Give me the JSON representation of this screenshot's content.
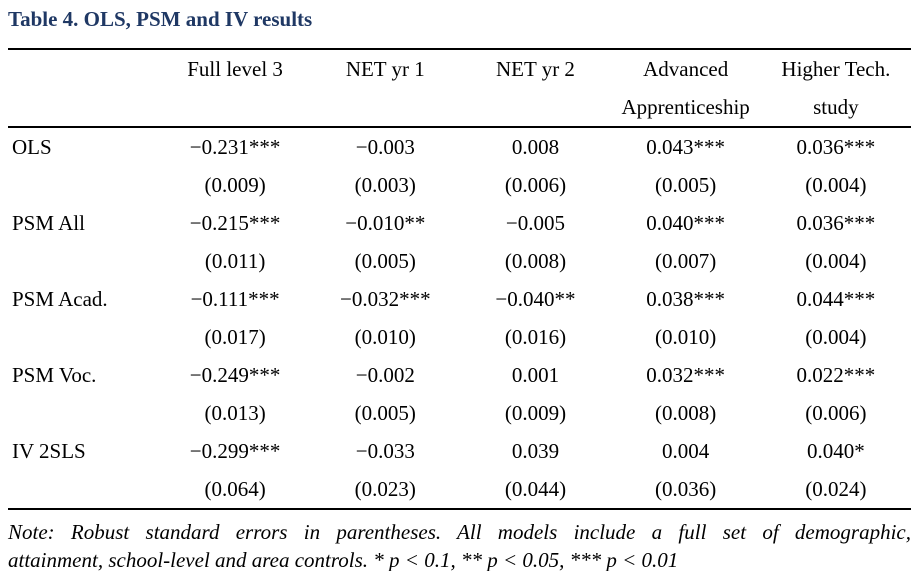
{
  "title": "Table 4. OLS, PSM and IV results",
  "colors": {
    "title_text": "#1f3864",
    "body_text": "#000000",
    "background": "#ffffff",
    "rule": "#000000"
  },
  "table": {
    "header": [
      {
        "line1": "Full level 3",
        "line2": ""
      },
      {
        "line1": "NET yr 1",
        "line2": ""
      },
      {
        "line1": "NET yr 2",
        "line2": ""
      },
      {
        "line1": "Advanced",
        "line2": "Apprenticeship"
      },
      {
        "line1": "Higher Tech.",
        "line2": "study"
      }
    ],
    "rows": [
      {
        "label": "OLS",
        "coef": [
          "−0.231***",
          "−0.003",
          "0.008",
          "0.043***",
          "0.036***"
        ],
        "se": [
          "(0.009)",
          "(0.003)",
          "(0.006)",
          "(0.005)",
          "(0.004)"
        ]
      },
      {
        "label": "PSM All",
        "coef": [
          "−0.215***",
          "−0.010**",
          "−0.005",
          "0.040***",
          "0.036***"
        ],
        "se": [
          "(0.011)",
          "(0.005)",
          "(0.008)",
          "(0.007)",
          "(0.004)"
        ]
      },
      {
        "label": "PSM Acad.",
        "coef": [
          "−0.111***",
          "−0.032***",
          "−0.040**",
          "0.038***",
          "0.044***"
        ],
        "se": [
          "(0.017)",
          "(0.010)",
          "(0.016)",
          "(0.010)",
          "(0.004)"
        ]
      },
      {
        "label": "PSM Voc.",
        "coef": [
          "−0.249***",
          "−0.002",
          "0.001",
          "0.032***",
          "0.022***"
        ],
        "se": [
          "(0.013)",
          "(0.005)",
          "(0.009)",
          "(0.008)",
          "(0.006)"
        ]
      },
      {
        "label": "IV 2SLS",
        "coef": [
          "−0.299***",
          "−0.033",
          "0.039",
          "0.004",
          "0.040*"
        ],
        "se": [
          "(0.064)",
          "(0.023)",
          "(0.044)",
          "(0.036)",
          "(0.024)"
        ]
      }
    ]
  },
  "note": {
    "line1": "Note: Robust standard errors in parentheses. All models include a full set of demographic,",
    "line2": "attainment, school-level and area controls. * p < 0.1, ** p < 0.05, *** p < 0.01"
  }
}
